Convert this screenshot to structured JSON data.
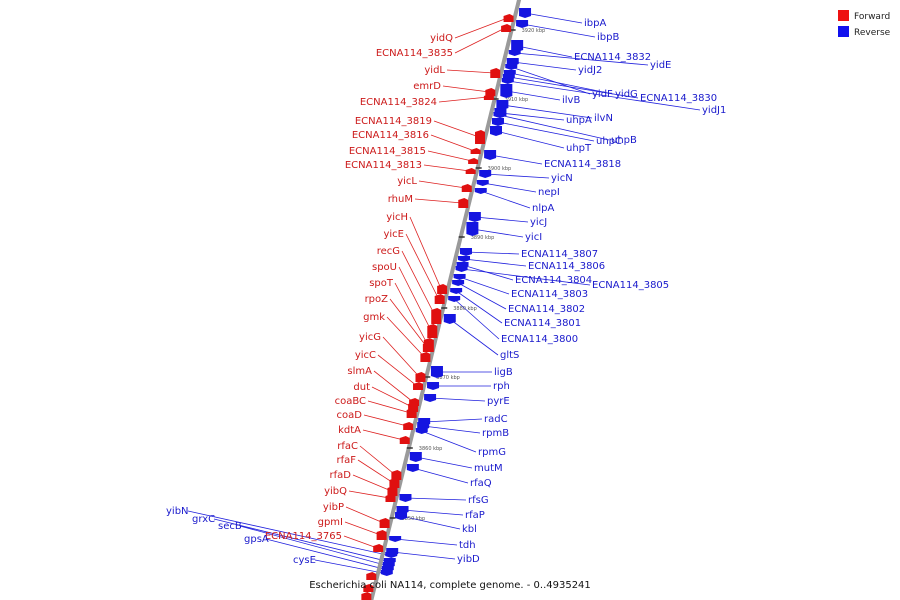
{
  "title": "Escherichia coli NA114, complete genome. - 0..4935241",
  "legend": [
    {
      "label": "Forward",
      "color": "#ee1111"
    },
    {
      "label": "Reverse",
      "color": "#1111ee"
    }
  ],
  "colors": {
    "forward": "#e01010",
    "reverse": "#1515e0",
    "forward_line": "#dd2020",
    "reverse_line": "#2020dd",
    "axis": "#9a9a9a"
  },
  "ticks": [
    "3920 kbp",
    "3910 kbp",
    "3900 kbp",
    "3890 kbp",
    "3880 kbp",
    "3870 kbp",
    "3860 kbp",
    "3850 kbp"
  ],
  "forward_genes": [
    "yidQ",
    "ECNA114_3835",
    "yidL",
    "emrD",
    "ECNA114_3824",
    "ECNA114_3819",
    "ECNA114_3816",
    "ECNA114_3815",
    "ECNA114_3813",
    "yicL",
    "rhuM",
    "yicH",
    "yicE",
    "recG",
    "spoU",
    "spoT",
    "rpoZ",
    "gmk",
    "yicG",
    "yicC",
    "slmA",
    "dut",
    "coaBC",
    "coaD",
    "kdtA",
    "rfaC",
    "rfaF",
    "rfaD",
    "yibQ",
    "yibP",
    "gpmI",
    "ECNA114_3765"
  ],
  "reverse_genes": [
    "ibpA",
    "ibpB",
    "ECNA114_3832",
    "yidE",
    "yidJ2",
    "yidF",
    "yidG",
    "ECNA114_3830",
    "yidJ1",
    "ilvB",
    "ilvN",
    "uhpA",
    "uhpT",
    "uhpC",
    "uhpB",
    "ECNA114_3818",
    "yicN",
    "nepI",
    "nlpA",
    "yicJ",
    "yicI",
    "ECNA114_3807",
    "ECNA114_3806",
    "ECNA114_3804",
    "ECNA114_3805",
    "ECNA114_3803",
    "ECNA114_3802",
    "ECNA114_3801",
    "ECNA114_3800",
    "gltS",
    "ligB",
    "rph",
    "pyrE",
    "radC",
    "rpmB",
    "rpmG",
    "mutM",
    "rfaQ",
    "rfsG",
    "rfaP",
    "kbl",
    "tdh",
    "yibD"
  ],
  "left_extra_genes": [
    "yibN",
    "grxC",
    "secB",
    "gpsA",
    "cysE"
  ]
}
